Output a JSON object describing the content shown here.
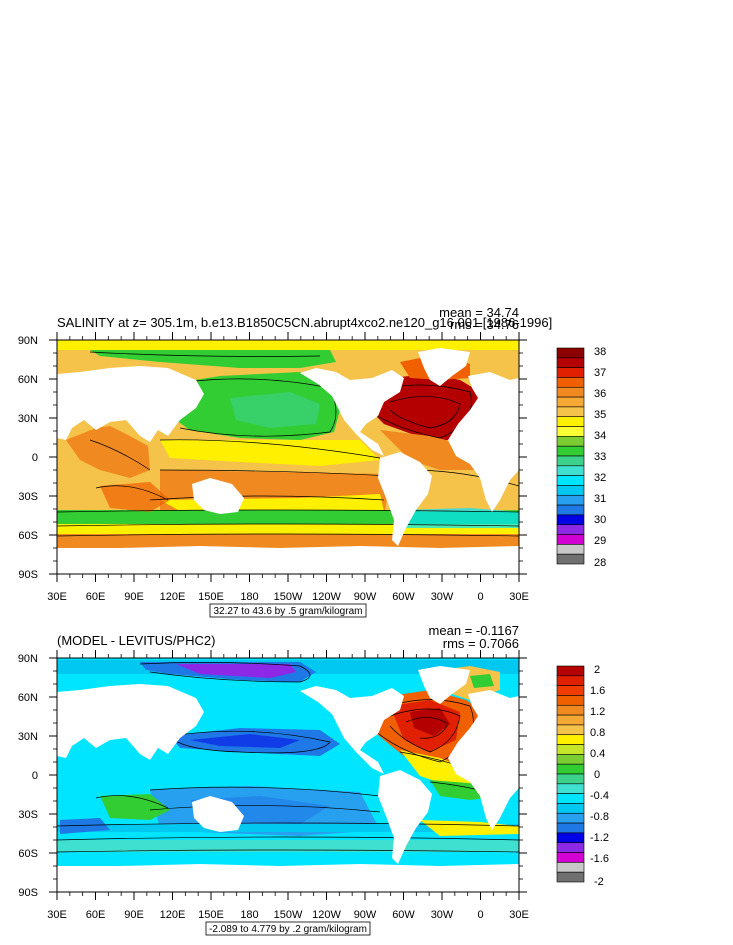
{
  "panels": [
    {
      "title": "SALINITY at z= 305.1m, b.e13.B1850C5CN.abrupt4xco2.ne120_g16.001 [1986-1996]",
      "stats": [
        "mean = 34.74",
        "rms = 34.76"
      ],
      "range_label": "32.27 to 43.6 by .5 gram/kilogram",
      "y_ticks": [
        "90N",
        "60N",
        "30N",
        "0",
        "30S",
        "60S",
        "90S"
      ],
      "x_ticks": [
        "30E",
        "60E",
        "90E",
        "120E",
        "150E",
        "180",
        "150W",
        "120W",
        "90W",
        "60W",
        "30W",
        "0",
        "30E"
      ],
      "colorbar": {
        "labels": [
          "38",
          "37",
          "36",
          "35",
          "34",
          "33",
          "32",
          "31",
          "30",
          "29",
          "28"
        ],
        "colors": [
          "#8c0000",
          "#b40000",
          "#e02000",
          "#f06000",
          "#f08a20",
          "#f5a833",
          "#f5c24a",
          "#fff000",
          "#ffff33",
          "#7ccd32",
          "#32cd32",
          "#3cd28c",
          "#40e0d0",
          "#00e5ff",
          "#00c8f0",
          "#28a0f0",
          "#1e78e6",
          "#0000e6",
          "#8c28e6",
          "#d200d2",
          "#c8c8c8",
          "#707070"
        ]
      }
    },
    {
      "title": "(MODEL - LEVITUS/PHC2)",
      "stats": [
        "mean = -0.1167",
        "rms = 0.7066"
      ],
      "range_label": "-2.089 to 4.779 by .2 gram/kilogram",
      "y_ticks": [
        "90N",
        "60N",
        "30N",
        "0",
        "30S",
        "60S",
        "90S"
      ],
      "x_ticks": [
        "30E",
        "60E",
        "90E",
        "120E",
        "150E",
        "180",
        "150W",
        "120W",
        "90W",
        "60W",
        "30W",
        "0",
        "30E"
      ],
      "colorbar": {
        "labels": [
          "2",
          "1.6",
          "1.2",
          "0.8",
          "0.4",
          "0",
          "-0.4",
          "-0.8",
          "-1.2",
          "-1.6",
          "-2"
        ],
        "colors": [
          "#b40000",
          "#e02000",
          "#f03c00",
          "#f06000",
          "#f08a20",
          "#f5a833",
          "#f5c24a",
          "#fff000",
          "#c8e628",
          "#7ccd32",
          "#32cd32",
          "#3cd28c",
          "#40e0d0",
          "#00e5ff",
          "#00c8f0",
          "#28a0f0",
          "#1e78e6",
          "#0000e6",
          "#8c28e6",
          "#d200d2",
          "#c8c8c8",
          "#707070"
        ]
      }
    }
  ]
}
